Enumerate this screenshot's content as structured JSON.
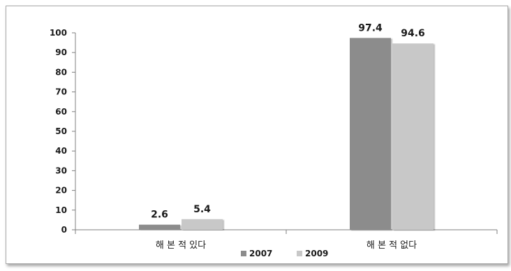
{
  "chart_data": {
    "type": "bar",
    "categories": [
      "해 본 적 있다",
      "해 본 적 없다"
    ],
    "series": [
      {
        "name": "2007",
        "values": [
          2.6,
          97.4
        ],
        "color": "#8c8c8c"
      },
      {
        "name": "2009",
        "values": [
          5.4,
          94.6
        ],
        "color": "#c8c8c8"
      }
    ],
    "ylim": [
      0,
      100
    ],
    "yticks": [
      0,
      10,
      20,
      30,
      40,
      50,
      60,
      70,
      80,
      90,
      100
    ],
    "title": "",
    "xlabel": "",
    "ylabel": "",
    "grid": false,
    "legend_position": "bottom"
  }
}
